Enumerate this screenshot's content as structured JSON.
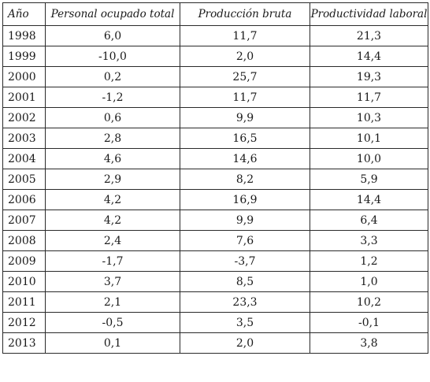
{
  "table": {
    "headers": [
      "Año",
      "Personal ocupado total",
      "Producción bruta",
      "Productividad laboral"
    ],
    "rows": [
      [
        "1998",
        "6,0",
        "11,7",
        "21,3"
      ],
      [
        "1999",
        "-10,0",
        "2,0",
        "14,4"
      ],
      [
        "2000",
        "0,2",
        "25,7",
        "19,3"
      ],
      [
        "2001",
        "-1,2",
        "11,7",
        "11,7"
      ],
      [
        "2002",
        "0,6",
        "9,9",
        "10,3"
      ],
      [
        "2003",
        "2,8",
        "16,5",
        "10,1"
      ],
      [
        "2004",
        "4,6",
        "14,6",
        "10,0"
      ],
      [
        "2005",
        "2,9",
        "8,2",
        "5,9"
      ],
      [
        "2006",
        "4,2",
        "16,9",
        "14,4"
      ],
      [
        "2007",
        "4,2",
        "9,9",
        "6,4"
      ],
      [
        "2008",
        "2,4",
        "7,6",
        "3,3"
      ],
      [
        "2009",
        "-1,7",
        "-3,7",
        "1,2"
      ],
      [
        "2010",
        "3,7",
        "8,5",
        "1,0"
      ],
      [
        "2011",
        "2,1",
        "23,3",
        "10,2"
      ],
      [
        "2012",
        "-0,5",
        "3,5",
        "-0,1"
      ],
      [
        "2013",
        "0,1",
        "2,0",
        "3,8"
      ]
    ]
  }
}
